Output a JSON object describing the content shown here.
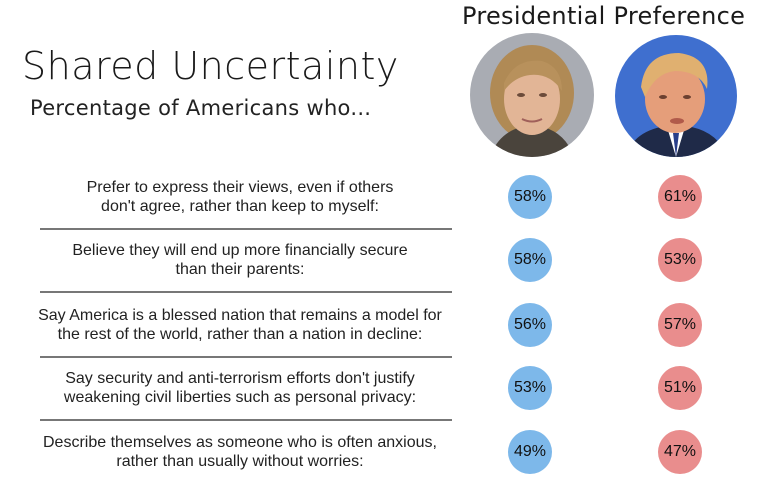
{
  "chart_data": {
    "type": "table",
    "title": "Shared Uncertainty",
    "subtitle": "Percentage of Americans who...",
    "column_header": "Presidential Preference",
    "series": [
      {
        "color": "#7db8ea",
        "values": [
          58,
          58,
          56,
          53,
          49
        ]
      },
      {
        "color": "#e98d8d",
        "values": [
          61,
          53,
          57,
          51,
          47
        ]
      }
    ],
    "categories": [
      [
        "Prefer to express their views, even if others",
        "don't agree, rather than keep to myself:"
      ],
      [
        "Believe they will end up more financially secure",
        "than their parents:"
      ],
      [
        "Say America is a blessed nation that remains a model for",
        "the rest of the world, rather than a nation in decline:"
      ],
      [
        "Say security and anti-terrorism efforts don't justify",
        "weakening civil liberties such as personal privacy:"
      ],
      [
        "Describe themselves as someone who is often anxious,",
        "rather than usually without worries:"
      ]
    ],
    "value_labels": [
      [
        "58%",
        "61%"
      ],
      [
        "58%",
        "53%"
      ],
      [
        "56%",
        "57%"
      ],
      [
        "53%",
        "51%"
      ],
      [
        "49%",
        "47%"
      ]
    ]
  }
}
